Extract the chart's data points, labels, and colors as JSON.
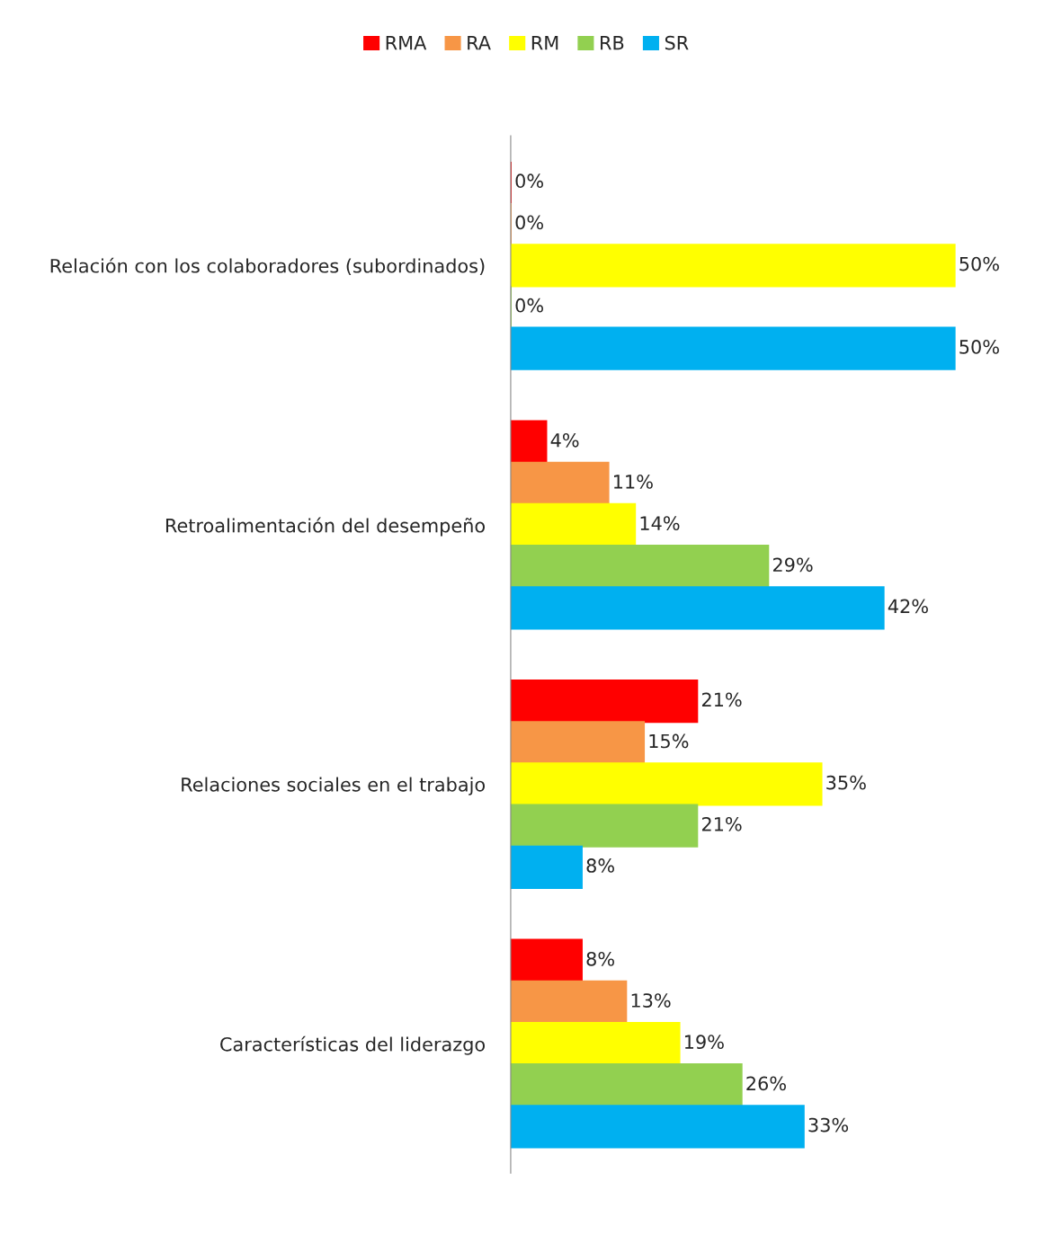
{
  "chart_data": {
    "type": "bar",
    "orientation": "horizontal",
    "legend": "top",
    "categories": [
      "Relación con los colaboradores (subordinados)",
      "Retroalimentación del desempeño",
      "Relaciones sociales en el trabajo",
      "Características del liderazgo"
    ],
    "series": [
      {
        "name": "RMA",
        "color": "#ff0000",
        "values": [
          0,
          4,
          21,
          8
        ],
        "value_labels": [
          "0%",
          "4%",
          "21%",
          "8%"
        ]
      },
      {
        "name": "RA",
        "color": "#f79646",
        "values": [
          0,
          11,
          15,
          13
        ],
        "value_labels": [
          "0%",
          "11%",
          "15%",
          "13%"
        ]
      },
      {
        "name": "RM",
        "color": "#ffff00",
        "values": [
          50,
          14,
          35,
          19
        ],
        "value_labels": [
          "50%",
          "14%",
          "35%",
          "19%"
        ]
      },
      {
        "name": "RB",
        "color": "#92d050",
        "values": [
          0,
          29,
          21,
          26
        ],
        "value_labels": [
          "0%",
          "29%",
          "21%",
          "26%"
        ]
      },
      {
        "name": "SR",
        "color": "#00b0f0",
        "values": [
          50,
          42,
          8,
          33
        ],
        "value_labels": [
          "50%",
          "42%",
          "8%",
          "33%"
        ]
      }
    ]
  }
}
